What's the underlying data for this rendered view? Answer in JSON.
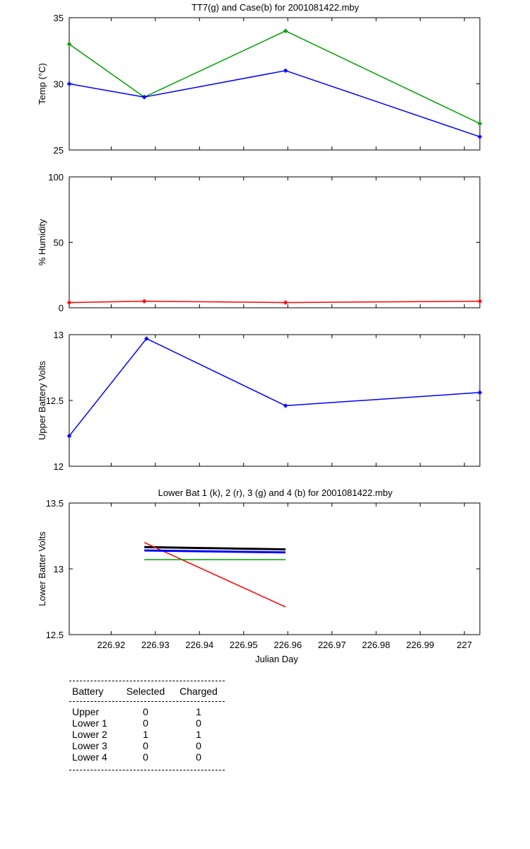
{
  "chart_data": [
    {
      "type": "line",
      "title": "TT7(g) and Case(b) for 2001081422.mby",
      "xlabel": "",
      "ylabel": "Temp  (°C)",
      "xlim": [
        226.9105,
        227.0035
      ],
      "ylim": [
        25,
        35
      ],
      "yticks": [
        25,
        30,
        35
      ],
      "grid": false,
      "series": [
        {
          "name": "TT7",
          "color": "#00a000",
          "marker": true,
          "x": [
            226.9105,
            226.9275,
            226.9595,
            227.0035
          ],
          "y": [
            33,
            29,
            34,
            27
          ]
        },
        {
          "name": "Case",
          "color": "#0000ff",
          "marker": true,
          "x": [
            226.9105,
            226.9275,
            226.9595,
            227.0035
          ],
          "y": [
            30,
            29,
            31,
            26
          ]
        }
      ]
    },
    {
      "type": "line",
      "title": "",
      "xlabel": "",
      "ylabel": "% Humidity",
      "xlim": [
        226.9105,
        227.0035
      ],
      "ylim": [
        0,
        100
      ],
      "yticks": [
        0,
        50,
        100
      ],
      "grid": false,
      "series": [
        {
          "color": "#ff0000",
          "marker": true,
          "x": [
            226.9105,
            226.9275,
            226.9595,
            227.0035
          ],
          "y": [
            4,
            5,
            4,
            5
          ]
        }
      ]
    },
    {
      "type": "line",
      "title": "",
      "xlabel": "",
      "ylabel": "Upper Battery Volts",
      "xlim": [
        226.9105,
        227.0035
      ],
      "ylim": [
        12,
        13
      ],
      "yticks": [
        12,
        12.5,
        13
      ],
      "ytick_labels": [
        "12",
        "12.5",
        "13"
      ],
      "grid": false,
      "series": [
        {
          "color": "#0000ff",
          "marker": true,
          "x": [
            226.9105,
            226.928,
            226.9595,
            227.0035
          ],
          "y": [
            12.23,
            12.97,
            12.46,
            12.56
          ]
        }
      ]
    },
    {
      "type": "line",
      "title": "Lower Bat 1 (k), 2 (r), 3 (g) and 4 (b) for 2001081422.mby",
      "xlabel": "Julian Day",
      "ylabel": "Lower Batter Volts",
      "xlim": [
        226.9105,
        227.0035
      ],
      "ylim": [
        12.5,
        13.5
      ],
      "yticks": [
        12.5,
        13,
        13.5
      ],
      "ytick_labels": [
        "12.5",
        "13",
        "13.5"
      ],
      "xticks": [
        226.92,
        226.93,
        226.94,
        226.95,
        226.96,
        226.97,
        226.98,
        226.99,
        227
      ],
      "xtick_labels": [
        "226.92",
        "226.93",
        "226.94",
        "226.95",
        "226.96",
        "226.97",
        "226.98",
        "226.99",
        "227"
      ],
      "grid": false,
      "series": [
        {
          "name": "1",
          "color": "#000000",
          "width": 3,
          "x": [
            226.9275,
            226.9595
          ],
          "y": [
            13.165,
            13.148
          ]
        },
        {
          "name": "2",
          "color": "#ff0000",
          "width": 1.5,
          "x": [
            226.9275,
            226.9595
          ],
          "y": [
            13.2,
            12.71
          ]
        },
        {
          "name": "3",
          "color": "#00a000",
          "width": 1.5,
          "x": [
            226.9275,
            226.9595
          ],
          "y": [
            13.07,
            13.07
          ]
        },
        {
          "name": "4",
          "color": "#0000ff",
          "width": 3,
          "x": [
            226.9275,
            226.9595
          ],
          "y": [
            13.14,
            13.125
          ]
        }
      ]
    }
  ],
  "battery_table": {
    "headers": [
      "Battery",
      "Selected",
      "Charged"
    ],
    "rows": [
      [
        "Upper",
        "0",
        "1"
      ],
      [
        "Lower 1",
        "0",
        "0"
      ],
      [
        "Lower 2",
        "1",
        "1"
      ],
      [
        "Lower 3",
        "0",
        "0"
      ],
      [
        "Lower 4",
        "0",
        "0"
      ]
    ]
  }
}
